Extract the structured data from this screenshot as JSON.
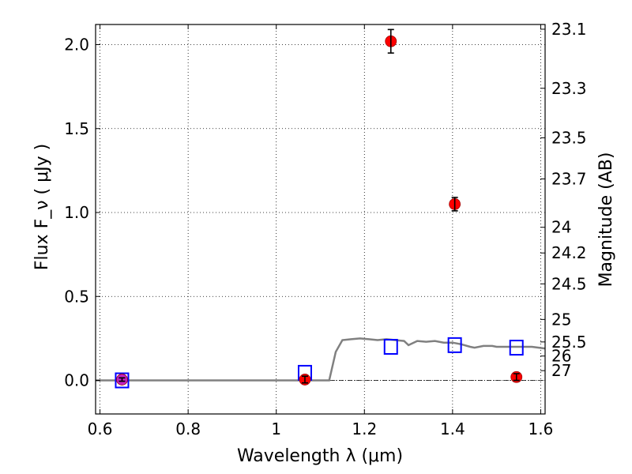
{
  "chart_data": {
    "type": "scatter",
    "xlabel": "Wavelength  λ (μm)",
    "ylabel_left": "Flux  F_ν ( μJy )",
    "ylabel_right": "Magnitude (AB)",
    "xlim": [
      0.59,
      1.61
    ],
    "ylim": [
      -0.2,
      2.12
    ],
    "x_ticks": [
      0.6,
      0.8,
      1,
      1.2,
      1.4,
      1.6
    ],
    "x_tick_labels": [
      "0.6",
      "0.8",
      "1",
      "1.2",
      "1.4",
      "1.6"
    ],
    "y_ticks": [
      0.0,
      0.5,
      1.0,
      1.5,
      2.0
    ],
    "y_tick_labels": [
      "0.0",
      "0.5",
      "1.0",
      "1.5",
      "2.0"
    ],
    "right_ticks": [
      {
        "label": "23.1",
        "flux": 2.092
      },
      {
        "label": "23.3",
        "flux": 1.74
      },
      {
        "label": "23.5",
        "flux": 1.445
      },
      {
        "label": "23.7",
        "flux": 1.2
      },
      {
        "label": "24",
        "flux": 0.912
      },
      {
        "label": "24.2",
        "flux": 0.759
      },
      {
        "label": "24.5",
        "flux": 0.575
      },
      {
        "label": "25",
        "flux": 0.363
      },
      {
        "label": "25.5",
        "flux": 0.229
      },
      {
        "label": "26",
        "flux": 0.145
      },
      {
        "label": "27",
        "flux": 0.058
      }
    ],
    "grid": true,
    "series": [
      {
        "kind": "line",
        "color": "#808080",
        "points": [
          [
            0.59,
            0.0
          ],
          [
            0.95,
            0.0
          ],
          [
            1.05,
            0.0
          ],
          [
            1.12,
            0.0
          ],
          [
            1.135,
            0.17
          ],
          [
            1.15,
            0.24
          ],
          [
            1.17,
            0.245
          ],
          [
            1.19,
            0.25
          ],
          [
            1.21,
            0.245
          ],
          [
            1.23,
            0.24
          ],
          [
            1.25,
            0.245
          ],
          [
            1.27,
            0.24
          ],
          [
            1.29,
            0.235
          ],
          [
            1.3,
            0.21
          ],
          [
            1.32,
            0.235
          ],
          [
            1.34,
            0.23
          ],
          [
            1.36,
            0.235
          ],
          [
            1.38,
            0.225
          ],
          [
            1.4,
            0.225
          ],
          [
            1.42,
            0.215
          ],
          [
            1.44,
            0.2
          ],
          [
            1.45,
            0.195
          ],
          [
            1.47,
            0.205
          ],
          [
            1.49,
            0.205
          ],
          [
            1.5,
            0.2
          ],
          [
            1.52,
            0.2
          ],
          [
            1.55,
            0.2
          ],
          [
            1.58,
            0.2
          ],
          [
            1.61,
            0.19
          ]
        ]
      },
      {
        "kind": "squares",
        "color": "#0000ff",
        "points": [
          [
            0.65,
            0.0
          ],
          [
            1.065,
            0.045
          ],
          [
            1.26,
            0.2
          ],
          [
            1.405,
            0.21
          ],
          [
            1.545,
            0.195
          ]
        ]
      },
      {
        "kind": "circles_with_errorbars",
        "color": "#ff0000",
        "points": [
          {
            "x": 1.065,
            "y": 0.005,
            "err": 0.02
          },
          {
            "x": 1.26,
            "y": 2.02,
            "err": 0.07
          },
          {
            "x": 1.405,
            "y": 1.05,
            "err": 0.04
          },
          {
            "x": 1.545,
            "y": 0.02,
            "err": 0.02
          }
        ]
      },
      {
        "kind": "circles",
        "color": "#c020c0",
        "points": [
          {
            "x": 0.65,
            "y": 0.005,
            "err": 0.01
          }
        ]
      }
    ]
  }
}
